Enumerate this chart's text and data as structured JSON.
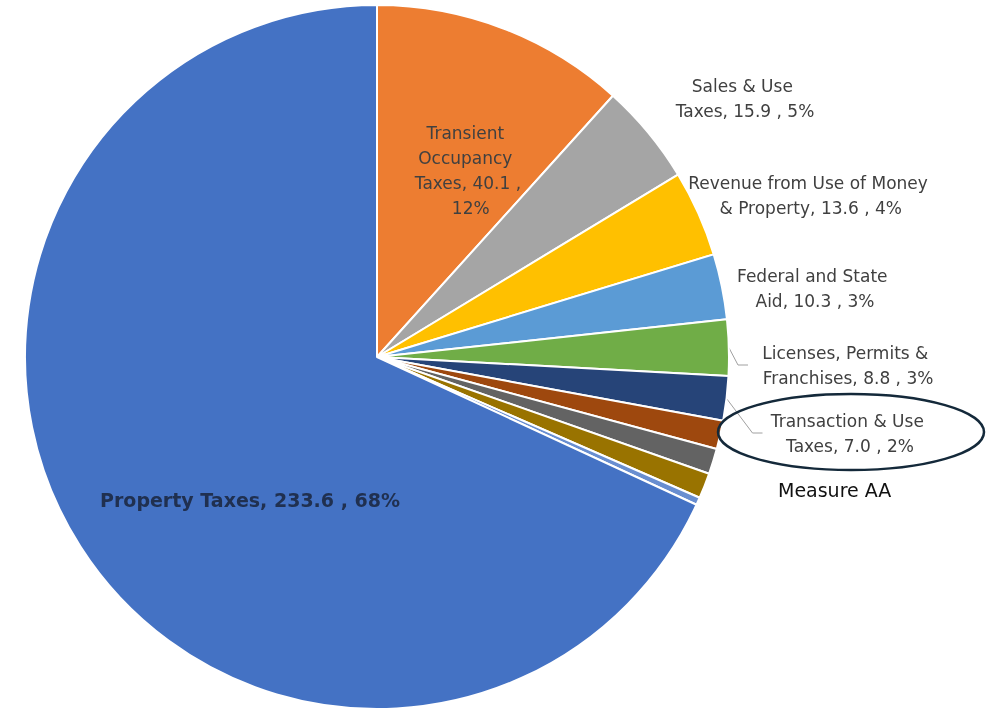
{
  "chart_data": {
    "type": "pie",
    "categories": [
      "Transient Occupancy Taxes",
      "Sales & Use Taxes",
      "Revenue from Use of Money & Property",
      "Federal and State Aid",
      "Licenses, Permits & Franchises",
      "Transaction & Use Taxes",
      null,
      null,
      null,
      null,
      "Property Taxes"
    ],
    "values": [
      40.1,
      15.9,
      13.6,
      10.3,
      8.8,
      7.0,
      4.5,
      4.0,
      4.0,
      1.2,
      233.6
    ],
    "value_labels": [
      "40.1 , 12%",
      "15.9 , 5%",
      "13.6 , 4%",
      "10.3 , 3%",
      "8.8 , 3%",
      "7.0 , 2%",
      null,
      null,
      null,
      null,
      "233.6 , 68%"
    ],
    "colors": [
      "#ed7d31",
      "#a5a5a5",
      "#ffc000",
      "#5b9bd5",
      "#70ad47",
      "#264478",
      "#9e480e",
      "#636363",
      "#997300",
      "#698ed0",
      "#4472c4"
    ],
    "annotations": [
      "Measure AA"
    ],
    "legend": false
  }
}
